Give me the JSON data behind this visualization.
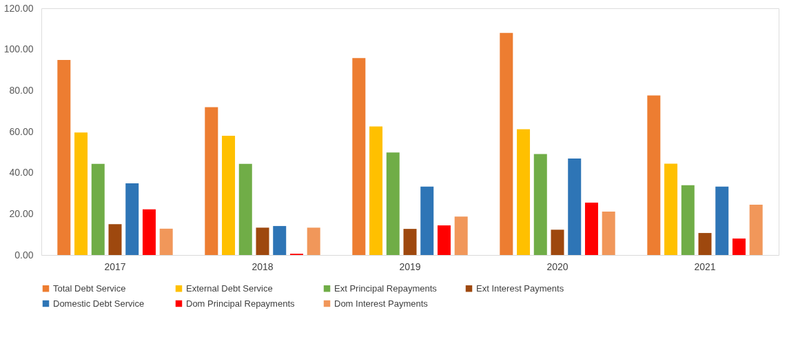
{
  "chart_data": {
    "type": "bar",
    "categories": [
      "2017",
      "2018",
      "2019",
      "2020",
      "2021"
    ],
    "series": [
      {
        "name": "Total Debt Service",
        "color": "#ed7d31",
        "values": [
          94.9,
          71.9,
          95.8,
          108.0,
          77.6
        ]
      },
      {
        "name": "External Debt  Service",
        "color": "#ffc000",
        "values": [
          59.6,
          58.0,
          62.5,
          61.2,
          44.4
        ]
      },
      {
        "name": "Ext Principal Repayments",
        "color": "#70ad47",
        "values": [
          44.3,
          44.3,
          49.9,
          49.1,
          33.9
        ]
      },
      {
        "name": "Ext Interest Payments",
        "color": "#9e480e",
        "values": [
          15.0,
          13.3,
          12.7,
          12.3,
          10.7
        ]
      },
      {
        "name": "Domestic Debt  Service",
        "color": "#2e75b6",
        "values": [
          34.9,
          14.1,
          33.3,
          46.9,
          33.3
        ]
      },
      {
        "name": "Dom Principal Repayments",
        "color": "#ff0000",
        "values": [
          22.2,
          0.6,
          14.4,
          25.5,
          8.0
        ]
      },
      {
        "name": "Dom Interest Payments",
        "color": "#f1975a",
        "values": [
          12.8,
          13.3,
          18.7,
          21.1,
          24.5
        ]
      }
    ],
    "ylim": [
      0,
      120
    ],
    "yticks": [
      {
        "value": 0,
        "label": "0.00"
      },
      {
        "value": 20,
        "label": "20.00"
      },
      {
        "value": 40,
        "label": "40.00"
      },
      {
        "value": 60,
        "label": "60.00"
      },
      {
        "value": 80,
        "label": "80.00"
      },
      {
        "value": 100,
        "label": "100.00"
      },
      {
        "value": 120,
        "label": "120.00"
      }
    ],
    "grid": false,
    "legend": "bottom"
  }
}
